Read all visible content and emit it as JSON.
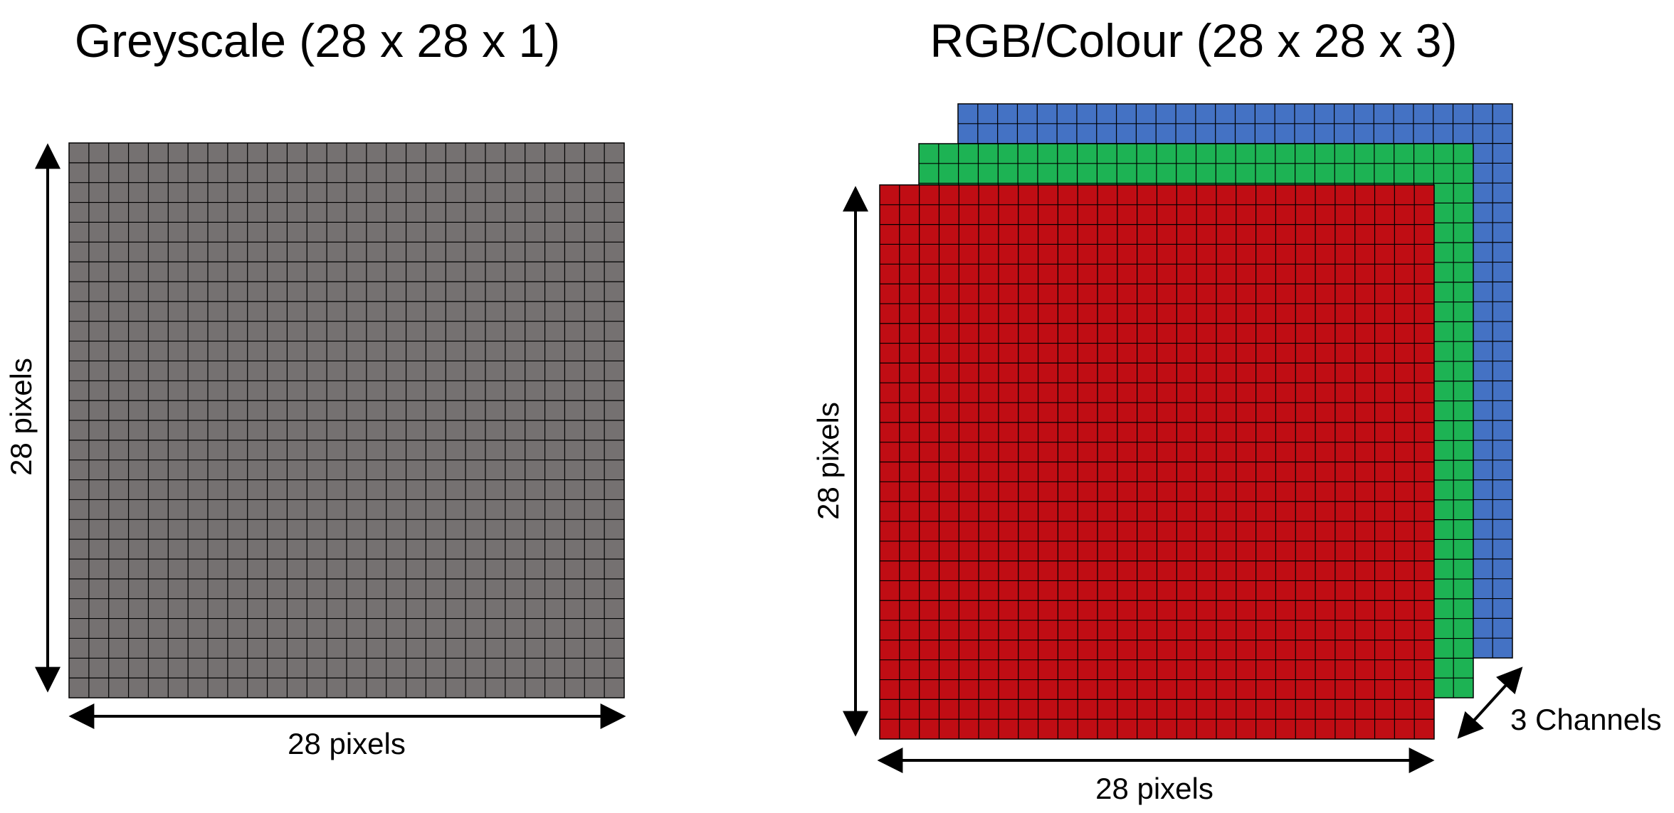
{
  "greyscale": {
    "title": "Greyscale (28 x 28 x 1)",
    "width_label": "28 pixels",
    "height_label": "28 pixels",
    "grid_cells": 28,
    "fill_color": "#757171"
  },
  "rgb": {
    "title": "RGB/Colour (28 x 28 x 3)",
    "width_label": "28 pixels",
    "height_label": "28 pixels",
    "channels_label": "3 Channels",
    "grid_cells": 28,
    "channels": [
      {
        "color": "#4472c4",
        "icon": "blue-channel"
      },
      {
        "color": "#1db354",
        "icon": "green-channel"
      },
      {
        "color": "#c00d14",
        "icon": "red-channel"
      }
    ]
  },
  "colors": {
    "grid_line": "#000000",
    "arrow": "#000000"
  }
}
